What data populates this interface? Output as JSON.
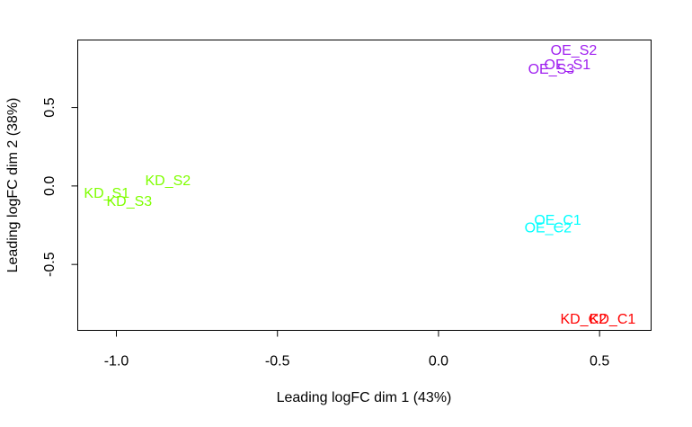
{
  "chart_data": {
    "type": "scatter",
    "title": "",
    "xlabel": "Leading logFC dim 1 (43%)",
    "ylabel": "Leading logFC dim 2 (38%)",
    "xlim": [
      -1.12,
      0.66
    ],
    "ylim": [
      -0.92,
      0.93
    ],
    "x_ticks": [
      -1.0,
      -0.5,
      0.0,
      0.5
    ],
    "x_tick_labels": [
      "-1.0",
      "-0.5",
      "0.0",
      "0.5"
    ],
    "y_ticks": [
      -0.5,
      0.0,
      0.5
    ],
    "y_tick_labels": [
      "-0.5",
      "0.0",
      "0.5"
    ],
    "grid": false,
    "legend": "none",
    "points": [
      {
        "label": "OE_S2",
        "x": 0.42,
        "y": 0.86,
        "color": "#A020F0"
      },
      {
        "label": "OE_S1",
        "x": 0.4,
        "y": 0.77,
        "color": "#A020F0"
      },
      {
        "label": "OE_S3",
        "x": 0.35,
        "y": 0.74,
        "color": "#A020F0"
      },
      {
        "label": "KD_S2",
        "x": -0.84,
        "y": 0.03,
        "color": "#7FFF00"
      },
      {
        "label": "KD_S1",
        "x": -1.03,
        "y": -0.05,
        "color": "#7FFF00"
      },
      {
        "label": "KD_S3",
        "x": -0.96,
        "y": -0.1,
        "color": "#7FFF00"
      },
      {
        "label": "OE_C1",
        "x": 0.37,
        "y": -0.22,
        "color": "#00FFFF"
      },
      {
        "label": "OE_C2",
        "x": 0.34,
        "y": -0.27,
        "color": "#00FFFF"
      },
      {
        "label": "KD_C2",
        "x": 0.45,
        "y": -0.85,
        "color": "#FF0000"
      },
      {
        "label": "KD_C1",
        "x": 0.54,
        "y": -0.85,
        "color": "#FF0000"
      }
    ]
  }
}
